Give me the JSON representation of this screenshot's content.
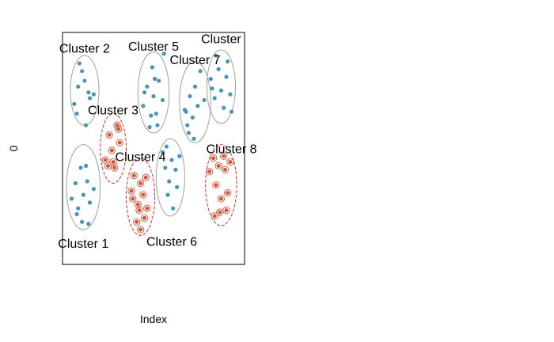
{
  "chart_data": {
    "type": "scatter",
    "xlabel": "Index",
    "ylabel": "0",
    "xlim": [
      0,
      7
    ],
    "ylim": [
      -3,
      3
    ],
    "colors": {
      "blue_point": "#4a95b5",
      "red_point": "#d2553a",
      "gray_ellipse": "#a0a0a0",
      "red_ellipse": "#cc3322",
      "frame": "#000000"
    },
    "clusters": [
      {
        "label": "Cluster 1",
        "group": "blue",
        "center": [
          0.8,
          -1.0
        ],
        "radius": [
          0.65,
          1.1
        ],
        "label_pos": [
          0.8,
          -2.45
        ]
      },
      {
        "label": "Cluster 2",
        "group": "blue",
        "center": [
          0.85,
          1.5
        ],
        "radius": [
          0.55,
          0.9
        ],
        "label_pos": [
          0.85,
          2.6
        ]
      },
      {
        "label": "Cluster 3",
        "group": "red",
        "center": [
          1.95,
          0.0
        ],
        "radius": [
          0.5,
          0.9
        ],
        "label_pos": [
          1.95,
          1.0
        ]
      },
      {
        "label": "Cluster 4",
        "group": "blue",
        "center": [
          4.15,
          -0.75
        ],
        "radius": [
          0.55,
          1.0
        ],
        "label_pos": [
          3.0,
          -0.2
        ]
      },
      {
        "label": "Cluster 5",
        "group": "blue",
        "center": [
          3.5,
          1.45
        ],
        "radius": [
          0.6,
          1.05
        ],
        "label_pos": [
          3.5,
          2.65
        ]
      },
      {
        "label": "Cluster 6",
        "group": "red",
        "center": [
          3.0,
          -1.25
        ],
        "radius": [
          0.55,
          1.0
        ],
        "label_pos": [
          4.2,
          -2.4
        ]
      },
      {
        "label": "Cluster 7",
        "group": "blue",
        "center": [
          5.1,
          1.2
        ],
        "radius": [
          0.6,
          1.05
        ],
        "label_pos": [
          5.1,
          2.3
        ]
      },
      {
        "label": "Cluster 8",
        "group": "red",
        "center": [
          6.1,
          -0.95
        ],
        "radius": [
          0.6,
          1.05
        ],
        "label_pos": [
          6.5,
          0.0
        ]
      },
      {
        "label": "Cluster",
        "group": "blue",
        "center": [
          6.1,
          1.6
        ],
        "radius": [
          0.55,
          0.95
        ],
        "label_pos": [
          6.1,
          2.85
        ]
      }
    ],
    "series": [
      {
        "group": "blue",
        "points": [
          [
            0.35,
            -1.3
          ],
          [
            0.5,
            -0.9
          ],
          [
            0.6,
            -1.55
          ],
          [
            0.7,
            -0.5
          ],
          [
            0.8,
            -1.2
          ],
          [
            0.95,
            -0.85
          ],
          [
            1.05,
            -1.4
          ],
          [
            0.75,
            -1.9
          ],
          [
            1.2,
            -1.05
          ],
          [
            0.9,
            -0.45
          ],
          [
            0.55,
            -1.7
          ],
          [
            1.0,
            -1.95
          ],
          [
            0.45,
            1.15
          ],
          [
            0.6,
            1.6
          ],
          [
            0.75,
            2.0
          ],
          [
            0.85,
            1.75
          ],
          [
            1.0,
            1.45
          ],
          [
            1.2,
            1.4
          ],
          [
            0.9,
            0.6
          ],
          [
            0.55,
            0.9
          ],
          [
            1.05,
            1.3
          ],
          [
            0.65,
            2.2
          ],
          [
            3.1,
            1.1
          ],
          [
            3.25,
            1.6
          ],
          [
            3.4,
            0.85
          ],
          [
            3.5,
            1.35
          ],
          [
            3.6,
            0.9
          ],
          [
            3.7,
            1.75
          ],
          [
            3.45,
            2.1
          ],
          [
            3.85,
            1.25
          ],
          [
            3.35,
            0.55
          ],
          [
            3.65,
            0.6
          ],
          [
            3.9,
            2.45
          ],
          [
            3.15,
            1.45
          ],
          [
            3.55,
            1.8
          ],
          [
            3.85,
            -0.1
          ],
          [
            3.95,
            -0.5
          ],
          [
            4.1,
            -0.85
          ],
          [
            4.2,
            -0.3
          ],
          [
            4.35,
            -0.55
          ],
          [
            4.05,
            -1.2
          ],
          [
            4.25,
            -1.55
          ],
          [
            4.4,
            -1.0
          ],
          [
            4.0,
            0.05
          ],
          [
            4.5,
            -0.2
          ],
          [
            4.7,
            1.0
          ],
          [
            4.8,
            0.6
          ],
          [
            4.9,
            1.35
          ],
          [
            5.0,
            0.8
          ],
          [
            5.1,
            1.6
          ],
          [
            5.2,
            1.1
          ],
          [
            5.3,
            2.0
          ],
          [
            4.85,
            0.4
          ],
          [
            5.45,
            1.25
          ],
          [
            5.05,
            0.25
          ],
          [
            4.75,
            0.95
          ],
          [
            5.7,
            1.8
          ],
          [
            5.85,
            1.3
          ],
          [
            6.0,
            2.05
          ],
          [
            6.1,
            1.5
          ],
          [
            6.2,
            1.05
          ],
          [
            6.3,
            1.85
          ],
          [
            6.45,
            1.4
          ],
          [
            5.9,
            2.4
          ],
          [
            6.35,
            2.25
          ],
          [
            6.5,
            0.95
          ],
          [
            5.75,
            1.55
          ]
        ]
      },
      {
        "group": "red",
        "points": [
          [
            1.65,
            -0.3
          ],
          [
            1.8,
            0.35
          ],
          [
            1.9,
            -0.05
          ],
          [
            2.0,
            -0.5
          ],
          [
            2.1,
            0.6
          ],
          [
            2.2,
            0.15
          ],
          [
            1.75,
            -0.45
          ],
          [
            2.15,
            0.5
          ],
          [
            1.95,
            -0.35
          ],
          [
            2.65,
            -1.1
          ],
          [
            2.75,
            -0.7
          ],
          [
            2.9,
            -1.45
          ],
          [
            3.0,
            -0.9
          ],
          [
            3.1,
            -1.2
          ],
          [
            3.2,
            -0.75
          ],
          [
            2.85,
            -1.9
          ],
          [
            3.0,
            -2.1
          ],
          [
            3.25,
            -1.55
          ],
          [
            2.7,
            -1.3
          ],
          [
            3.15,
            -1.8
          ],
          [
            2.95,
            -1.6
          ],
          [
            5.65,
            -0.6
          ],
          [
            5.8,
            -0.25
          ],
          [
            5.9,
            -0.95
          ],
          [
            6.0,
            -0.45
          ],
          [
            6.1,
            -1.3
          ],
          [
            6.25,
            -0.55
          ],
          [
            6.35,
            -1.15
          ],
          [
            5.85,
            -1.75
          ],
          [
            6.3,
            -1.6
          ],
          [
            6.45,
            -0.35
          ],
          [
            6.05,
            -1.65
          ],
          [
            6.2,
            -0.2
          ]
        ]
      }
    ]
  }
}
